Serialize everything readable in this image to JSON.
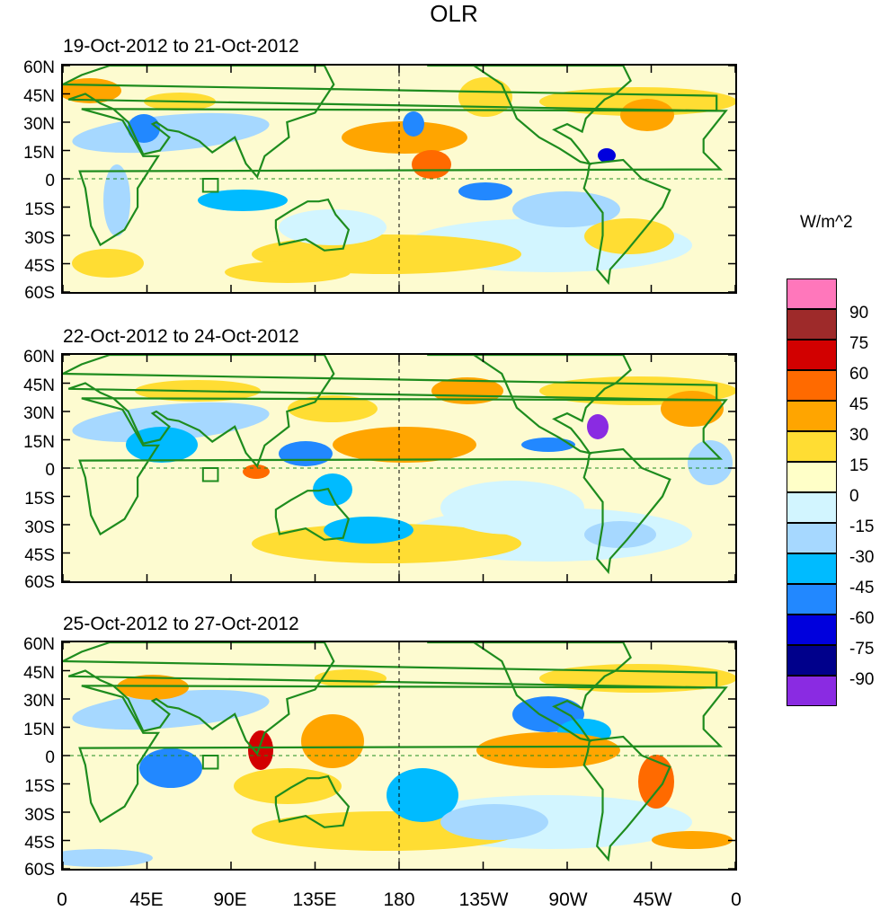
{
  "title": "OLR",
  "units": "W/m^2",
  "panels": [
    {
      "label": "19-Oct-2012 to 21-Oct-2012"
    },
    {
      "label": "22-Oct-2012 to 24-Oct-2012"
    },
    {
      "label": "25-Oct-2012 to 27-Oct-2012"
    }
  ],
  "lat_labels": [
    "60N",
    "45N",
    "30N",
    "15N",
    "0",
    "15S",
    "30S",
    "45S",
    "60S"
  ],
  "lon_labels": [
    "0",
    "45E",
    "90E",
    "135E",
    "180",
    "135W",
    "90W",
    "45W",
    "0"
  ],
  "legend": {
    "colors": [
      "#ff77bb",
      "#9e2a2a",
      "#d20000",
      "#ff6a00",
      "#ffa500",
      "#ffdd33",
      "#ffffc8",
      "#d2f5ff",
      "#a6d8ff",
      "#00bbff",
      "#2288ff",
      "#0000dd",
      "#00008b",
      "#8a2be2"
    ],
    "ticks": [
      "90",
      "75",
      "60",
      "45",
      "30",
      "15",
      "0",
      "-15",
      "-30",
      "-45",
      "-60",
      "-75",
      "-90"
    ]
  },
  "map_colors": {
    "ocean": "#fdfbd0",
    "land": "#f7f3cc",
    "coast": "#1e8c1e"
  }
}
